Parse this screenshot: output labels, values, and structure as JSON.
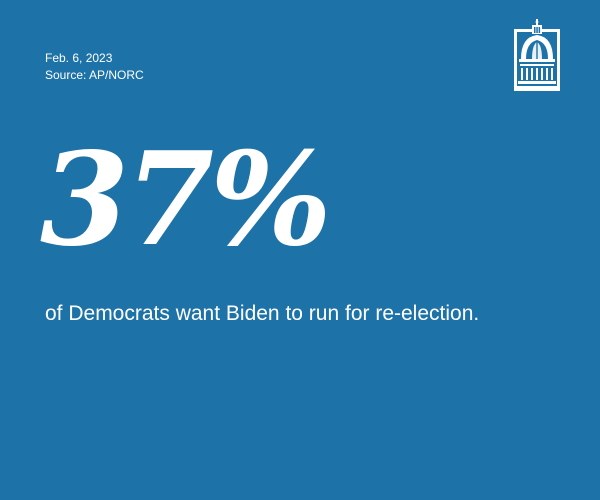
{
  "meta": {
    "date": "Feb. 6, 2023",
    "source": "Source: AP/NORC"
  },
  "logo": {
    "icon": "capitol-dome-icon"
  },
  "stat": {
    "value": "37%"
  },
  "caption": {
    "text": "of Democrats want Biden to run for re-election."
  },
  "colors": {
    "background": "#1d72a8",
    "text": "#ffffff"
  }
}
